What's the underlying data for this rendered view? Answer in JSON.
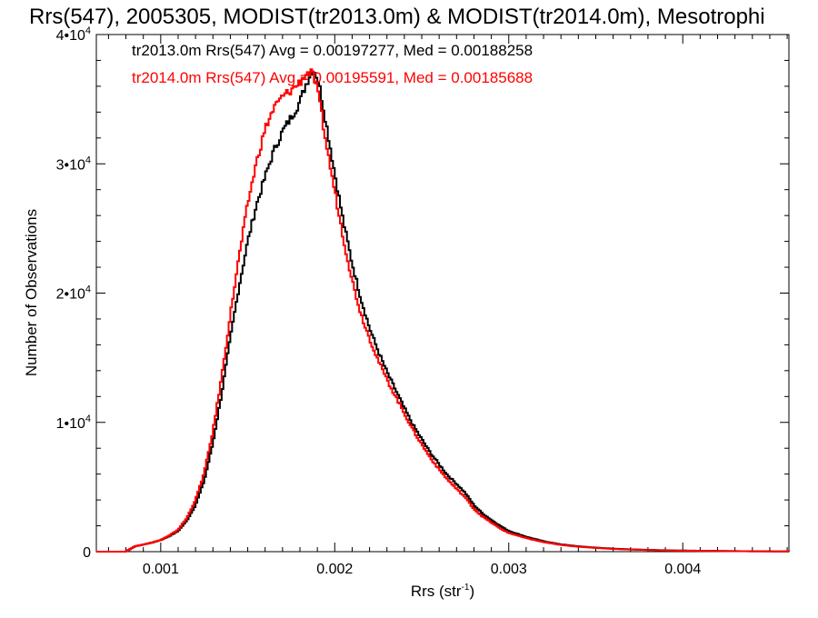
{
  "chart_data": {
    "type": "line",
    "title": "Rrs(547), 2005305, MODIST(tr2013.0m) & MODIST(tr2014.0m), Mesotrophi",
    "xlabel": "Rrs (str",
    "xlabel_sup": "-1",
    "xlabel_end": ")",
    "ylabel": "Number of Observations",
    "xlim": [
      0.00063,
      0.00461
    ],
    "ylim": [
      0,
      40000
    ],
    "x_ticks": [
      {
        "value": 0.001,
        "label": "0.001"
      },
      {
        "value": 0.002,
        "label": "0.002"
      },
      {
        "value": 0.003,
        "label": "0.003"
      },
      {
        "value": 0.004,
        "label": "0.004"
      }
    ],
    "y_ticks": [
      {
        "value": 0,
        "base": "0",
        "exp": ""
      },
      {
        "value": 10000,
        "base": "1•10",
        "exp": "4"
      },
      {
        "value": 20000,
        "base": "2•10",
        "exp": "4"
      },
      {
        "value": 30000,
        "base": "3•10",
        "exp": "4"
      },
      {
        "value": 40000,
        "base": "4•10",
        "exp": "4"
      }
    ],
    "legend_placement": "top-left",
    "series": [
      {
        "label": "tr2013.0m Rrs(547) Avg = 0.00197277, Med = 0.00188258",
        "color": "#000000",
        "x": [
          0.00063,
          0.0008,
          0.00085,
          0.0009,
          0.00095,
          0.001,
          0.00105,
          0.0011,
          0.00115,
          0.0012,
          0.00125,
          0.0013,
          0.00135,
          0.0014,
          0.00145,
          0.0015,
          0.00155,
          0.0016,
          0.00165,
          0.0017,
          0.00175,
          0.0018,
          0.00183,
          0.00186,
          0.00188,
          0.0019,
          0.00192,
          0.00195,
          0.002,
          0.00205,
          0.0021,
          0.00215,
          0.0022,
          0.00225,
          0.0023,
          0.00235,
          0.0024,
          0.00245,
          0.0025,
          0.00255,
          0.0026,
          0.00265,
          0.0027,
          0.00275,
          0.0028,
          0.00285,
          0.0029,
          0.00295,
          0.003,
          0.0031,
          0.0032,
          0.0033,
          0.0034,
          0.0035,
          0.0036,
          0.0037,
          0.0038,
          0.0039,
          0.004,
          0.0042,
          0.0044,
          0.00461
        ],
        "y": [
          0,
          0,
          400,
          550,
          700,
          900,
          1200,
          1600,
          2400,
          3600,
          5500,
          8400,
          12200,
          16500,
          20500,
          24000,
          26800,
          29000,
          31000,
          32500,
          33600,
          34800,
          36000,
          37000,
          37300,
          36700,
          35500,
          33200,
          29300,
          25500,
          22300,
          19600,
          17300,
          15500,
          13900,
          12500,
          11100,
          9800,
          8700,
          7650,
          6750,
          5900,
          5250,
          4550,
          3600,
          2950,
          2450,
          2000,
          1600,
          1150,
          800,
          560,
          410,
          310,
          230,
          180,
          140,
          105,
          85,
          55,
          30,
          15
        ]
      },
      {
        "label": "tr2014.0m Rrs(547) Avg = 0.00195591, Med = 0.00185688",
        "color": "#ff0000",
        "x": [
          0.00063,
          0.0008,
          0.00085,
          0.0009,
          0.00095,
          0.001,
          0.00105,
          0.0011,
          0.00115,
          0.0012,
          0.00125,
          0.0013,
          0.00135,
          0.0014,
          0.00145,
          0.0015,
          0.00155,
          0.0016,
          0.00165,
          0.0017,
          0.00175,
          0.0018,
          0.00183,
          0.00186,
          0.00188,
          0.0019,
          0.00192,
          0.00195,
          0.002,
          0.00205,
          0.0021,
          0.00215,
          0.0022,
          0.00225,
          0.0023,
          0.00235,
          0.0024,
          0.00245,
          0.0025,
          0.00255,
          0.0026,
          0.00265,
          0.0027,
          0.00275,
          0.0028,
          0.00285,
          0.0029,
          0.00295,
          0.003,
          0.0031,
          0.0032,
          0.0033,
          0.0034,
          0.0035,
          0.0036,
          0.0037,
          0.0038,
          0.0039,
          0.004,
          0.0042,
          0.0044,
          0.00461
        ],
        "y": [
          0,
          0,
          400,
          550,
          700,
          900,
          1250,
          1700,
          2600,
          4000,
          6100,
          9300,
          13500,
          18300,
          22800,
          26900,
          30100,
          32700,
          34300,
          35200,
          35700,
          36300,
          36900,
          37100,
          36700,
          35600,
          34200,
          31600,
          27900,
          24200,
          21000,
          18400,
          16500,
          14800,
          13300,
          12000,
          10700,
          9400,
          8300,
          7250,
          6350,
          5550,
          4850,
          4200,
          3300,
          2700,
          2250,
          1800,
          1450,
          1050,
          740,
          520,
          380,
          290,
          210,
          165,
          130,
          95,
          75,
          50,
          28,
          12
        ]
      }
    ]
  }
}
